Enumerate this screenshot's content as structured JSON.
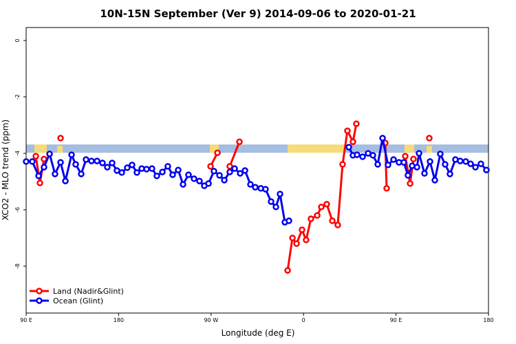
{
  "chart_data": {
    "type": "line",
    "title": "10N-15N September (Ver 9)   2014-09-06 to 2020-01-21",
    "x_label": "Longitude (deg E)",
    "y_label": "XCO2 - MLO trend (ppm)",
    "xlim": [
      90,
      540
    ],
    "ylim": [
      -9.66,
      0.46
    ],
    "xticks": [
      {
        "value": 90,
        "label": "90 E"
      },
      {
        "value": 180,
        "label": "180"
      },
      {
        "value": 270,
        "label": "90 W"
      },
      {
        "value": 360,
        "label": "0"
      },
      {
        "value": 450,
        "label": "90 E"
      },
      {
        "value": 540,
        "label": "180"
      }
    ],
    "yticks": [
      0,
      -2,
      -4,
      -6,
      -8
    ],
    "legend": "bottom-left",
    "series": [
      {
        "name": "Land (Nadir&Glint)",
        "color": "#ff0000",
        "x": [
          99.4,
          103.4,
          107.4,
          null,
          123.5,
          null,
          269.5,
          276.2,
          null,
          288.2,
          297.6,
          null,
          344.5,
          349.2,
          353.2,
          358.5,
          362.5,
          367.2,
          373.3,
          377.3,
          382.6,
          388.0,
          393.3,
          398.0,
          402.7,
          408.1,
          411.4,
          null,
          439.5,
          440.9,
          null,
          459.0,
          463.7,
          467.0,
          null,
          482.4
        ],
        "values": [
          -4.1,
          -5.05,
          -4.2,
          null,
          -3.46,
          null,
          -4.46,
          -3.98,
          null,
          -4.46,
          -3.59,
          null,
          -8.15,
          -7.0,
          -7.2,
          -6.71,
          -7.07,
          -6.32,
          -6.2,
          -5.9,
          -5.8,
          -6.39,
          -6.54,
          -4.39,
          -3.2,
          -3.59,
          -2.95,
          null,
          -3.63,
          -5.24,
          null,
          -4.1,
          -5.07,
          -4.2,
          null,
          -3.46
        ]
      },
      {
        "name": "Ocean (Glint)",
        "color": "#0000ee",
        "x": [
          90,
          96.0,
          102.1,
          107.4,
          112.8,
          118.1,
          123.5,
          128.2,
          134.2,
          138.2,
          143.6,
          148.3,
          153.6,
          159.0,
          164.3,
          169.0,
          173.7,
          178.4,
          183.1,
          188.4,
          193.1,
          197.8,
          202.5,
          207.2,
          212.5,
          217.2,
          222.6,
          227.9,
          232.6,
          238.0,
          242.7,
          248.0,
          253.4,
          258.7,
          263.4,
          267.5,
          272.8,
          278.2,
          282.9,
          288.2,
          292.9,
          298.3,
          303.0,
          308.3,
          313.0,
          318.4,
          323.0,
          328.4,
          333.1,
          337.1,
          341.8,
          345.8,
          null,
          404.1,
          408.1,
          412.1,
          417.5,
          422.8,
          427.5,
          432.2,
          436.9,
          442.2,
          447.6,
          452.9,
          457.6,
          461.6,
          465.7,
          470.4,
          472.4,
          477.7,
          483.1,
          487.8,
          493.1,
          497.8,
          502.5,
          507.8,
          512.5,
          517.9,
          522.6,
          527.3,
          532.6,
          538.0
        ],
        "values": [
          -4.29,
          -4.29,
          -4.8,
          -4.49,
          -4.02,
          -4.73,
          -4.32,
          -4.98,
          -4.05,
          -4.39,
          -4.73,
          -4.22,
          -4.27,
          -4.27,
          -4.34,
          -4.49,
          -4.34,
          -4.61,
          -4.68,
          -4.51,
          -4.41,
          -4.68,
          -4.54,
          -4.56,
          -4.54,
          -4.8,
          -4.66,
          -4.46,
          -4.76,
          -4.59,
          -5.1,
          -4.76,
          -4.9,
          -4.98,
          -5.15,
          -5.07,
          -4.63,
          -4.78,
          -4.95,
          -4.66,
          -4.54,
          -4.71,
          -4.61,
          -5.1,
          -5.2,
          -5.24,
          -5.27,
          -5.71,
          -5.9,
          -5.44,
          -6.44,
          -6.39,
          null,
          -3.78,
          -4.07,
          -4.05,
          -4.12,
          -4.0,
          -4.07,
          -4.39,
          -3.46,
          -4.41,
          -4.22,
          -4.32,
          -4.32,
          -4.78,
          -4.44,
          -4.49,
          -4.0,
          -4.71,
          -4.29,
          -4.95,
          -4.02,
          -4.39,
          -4.73,
          -4.22,
          -4.27,
          -4.29,
          -4.37,
          -4.49,
          -4.37,
          -4.59
        ]
      }
    ]
  }
}
